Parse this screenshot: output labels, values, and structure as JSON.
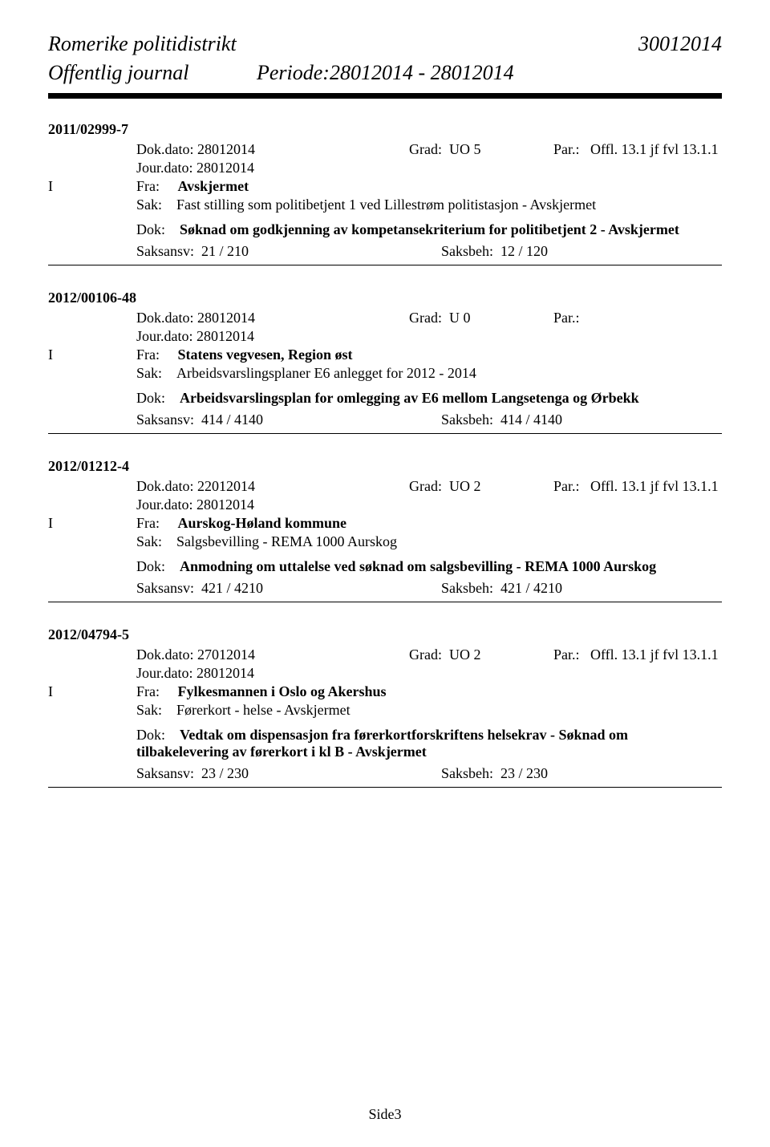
{
  "header": {
    "title": "Romerike politidistrikt",
    "code": "30012014",
    "subtitle": "Offentlig journal",
    "period_label": "Periode:28012014 - 28012014"
  },
  "cases": [
    {
      "id": "2011/02999-7",
      "dok_dato_label": "Dok.dato:",
      "dok_dato": "28012014",
      "grad_label": "Grad:",
      "grad_value": "UO 5",
      "par_label": "Par.:",
      "par_value": "Offl. 13.1 jf fvl 13.1.1",
      "jour_dato_label": "Jour.dato:",
      "jour_dato": "28012014",
      "i_label": "I",
      "fra_label": "Fra:",
      "fra_value": "Avskjermet",
      "sak_label": "Sak:",
      "sak_value": "Fast stilling som politibetjent 1 ved Lillestrøm politistasjon - Avskjermet",
      "dok_label": "Dok:",
      "dok_value": "Søknad om godkjenning av kompetansekriterium for politibetjent 2 - Avskjermet",
      "saksansv_label": "Saksansv:",
      "saksansv_value": "21 / 210",
      "saksbeh_label": "Saksbeh:",
      "saksbeh_value": "12 / 120"
    },
    {
      "id": "2012/00106-48",
      "dok_dato_label": "Dok.dato:",
      "dok_dato": "28012014",
      "grad_label": "Grad:",
      "grad_value": "U 0",
      "par_label": "Par.:",
      "par_value": "",
      "jour_dato_label": "Jour.dato:",
      "jour_dato": "28012014",
      "i_label": "I",
      "fra_label": "Fra:",
      "fra_value": "Statens vegvesen, Region øst",
      "sak_label": "Sak:",
      "sak_value": "Arbeidsvarslingsplaner E6 anlegget for 2012 - 2014",
      "dok_label": "Dok:",
      "dok_value": "Arbeidsvarslingsplan for omlegging av E6 mellom Langsetenga og Ørbekk",
      "saksansv_label": "Saksansv:",
      "saksansv_value": "414 / 4140",
      "saksbeh_label": "Saksbeh:",
      "saksbeh_value": "414 / 4140"
    },
    {
      "id": "2012/01212-4",
      "dok_dato_label": "Dok.dato:",
      "dok_dato": "22012014",
      "grad_label": "Grad:",
      "grad_value": "UO 2",
      "par_label": "Par.:",
      "par_value": "Offl. 13.1 jf fvl 13.1.1",
      "jour_dato_label": "Jour.dato:",
      "jour_dato": "28012014",
      "i_label": "I",
      "fra_label": "Fra:",
      "fra_value": "Aurskog-Høland kommune",
      "sak_label": "Sak:",
      "sak_value": "Salgsbevilling - REMA 1000 Aurskog",
      "dok_label": "Dok:",
      "dok_value": "Anmodning om uttalelse ved søknad om salgsbevilling - REMA 1000 Aurskog",
      "saksansv_label": "Saksansv:",
      "saksansv_value": "421 / 4210",
      "saksbeh_label": "Saksbeh:",
      "saksbeh_value": "421 / 4210"
    },
    {
      "id": "2012/04794-5",
      "dok_dato_label": "Dok.dato:",
      "dok_dato": "27012014",
      "grad_label": "Grad:",
      "grad_value": "UO 2",
      "par_label": "Par.:",
      "par_value": "Offl. 13.1 jf fvl 13.1.1",
      "jour_dato_label": "Jour.dato:",
      "jour_dato": "28012014",
      "i_label": "I",
      "fra_label": "Fra:",
      "fra_value": "Fylkesmannen i Oslo og Akershus",
      "sak_label": "Sak:",
      "sak_value": "Førerkort - helse - Avskjermet",
      "dok_label": "Dok:",
      "dok_value": "Vedtak om dispensasjon fra førerkortforskriftens helsekrav - Søknad om tilbakelevering av førerkort i kl B - Avskjermet",
      "saksansv_label": "Saksansv:",
      "saksansv_value": "23 / 230",
      "saksbeh_label": "Saksbeh:",
      "saksbeh_value": "23 / 230"
    }
  ],
  "footer": {
    "page": "Side3"
  }
}
